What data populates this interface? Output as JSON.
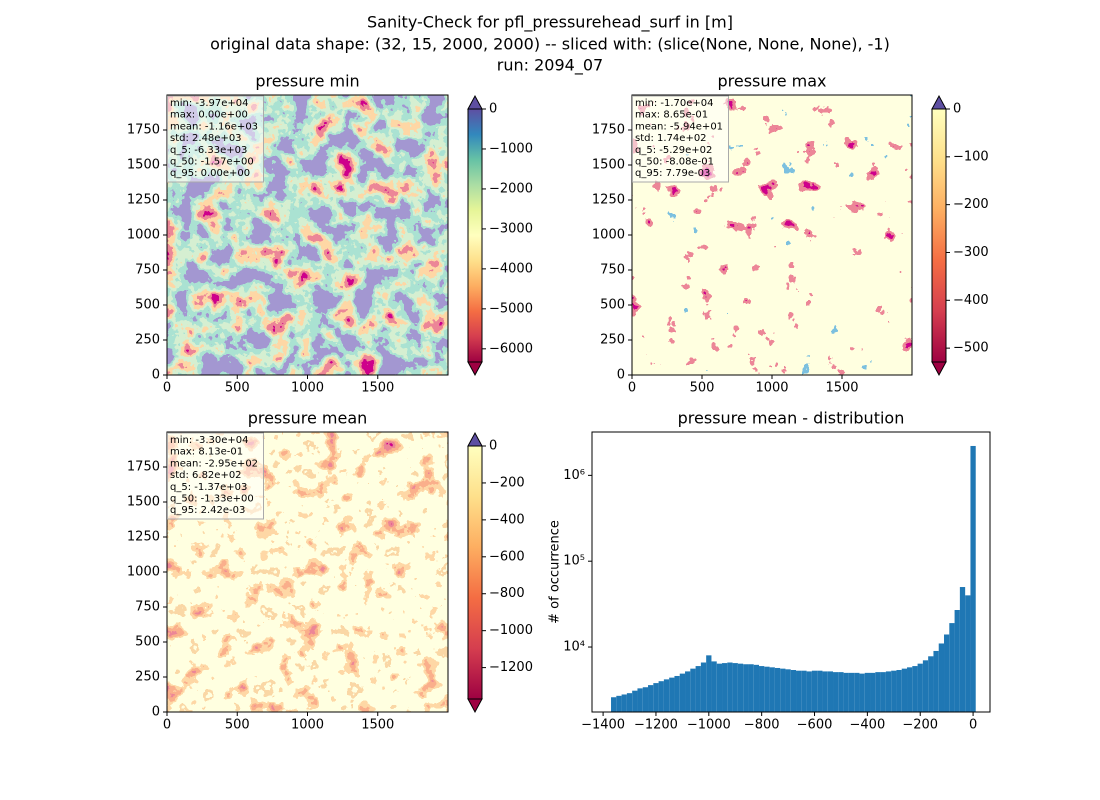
{
  "suptitle": [
    "Sanity-Check for pfl_pressurehead_surf in [m]",
    "original data shape: (32, 15, 2000, 2000) -- sliced with: (slice(None, None, None), -1)",
    "run: 2094_07"
  ],
  "chart_data": [
    {
      "type": "heatmap",
      "title": "pressure min",
      "xlim": [
        0,
        2000
      ],
      "ylim": [
        0,
        2000
      ],
      "xticks": [
        0,
        500,
        1000,
        1500
      ],
      "yticks": [
        0,
        250,
        500,
        750,
        1000,
        1250,
        1500,
        1750
      ],
      "stats": [
        "min: -3.97e+04",
        "max: 0.00e+00",
        "mean: -1.16e+03",
        "std: 2.48e+03",
        "q_5: -6.33e+03",
        "q_50: -1.57e+00",
        "q_95: 0.00e+00"
      ],
      "colormap": "Spectral",
      "clim": [
        -6330,
        0
      ],
      "cticks": [
        0,
        {
          "value": -1000,
          "label": "−1000"
        },
        {
          "value": -2000,
          "label": "−2000"
        },
        {
          "value": -3000,
          "label": "−3000"
        },
        {
          "value": -4000,
          "label": "−4000"
        },
        {
          "value": -5000,
          "label": "−5000"
        },
        {
          "value": -6000,
          "label": "−6000"
        }
      ]
    },
    {
      "type": "heatmap",
      "title": "pressure max",
      "xlim": [
        0,
        2000
      ],
      "ylim": [
        0,
        2000
      ],
      "xticks": [
        0,
        500,
        1000,
        1500
      ],
      "yticks": [
        0,
        250,
        500,
        750,
        1000,
        1250,
        1500,
        1750
      ],
      "stats": [
        "min: -1.70e+04",
        "max: 8.65e-01",
        "mean: -5.94e+01",
        "std: 1.74e+02",
        "q_5: -5.29e+02",
        "q_50: -8.08e-01",
        "q_95: 7.79e-03"
      ],
      "colormap": "Spectral",
      "clim": [
        -529,
        0
      ],
      "cticks": [
        0,
        {
          "value": -100,
          "label": "−100"
        },
        {
          "value": -200,
          "label": "−200"
        },
        {
          "value": -300,
          "label": "−300"
        },
        {
          "value": -400,
          "label": "−400"
        },
        {
          "value": -500,
          "label": "−500"
        }
      ]
    },
    {
      "type": "heatmap",
      "title": "pressure mean",
      "xlim": [
        0,
        2000
      ],
      "ylim": [
        0,
        2000
      ],
      "xticks": [
        0,
        500,
        1000,
        1500
      ],
      "yticks": [
        0,
        250,
        500,
        750,
        1000,
        1250,
        1500,
        1750
      ],
      "stats": [
        "min: -3.30e+04",
        "max: 8.13e-01",
        "mean: -2.95e+02",
        "std: 6.82e+02",
        "q_5: -1.37e+03",
        "q_50: -1.33e+00",
        "q_95: 2.42e-03"
      ],
      "colormap": "Spectral",
      "clim": [
        -1370,
        0
      ],
      "cticks": [
        0,
        {
          "value": -200,
          "label": "−200"
        },
        {
          "value": -400,
          "label": "−400"
        },
        {
          "value": -600,
          "label": "−600"
        },
        {
          "value": -800,
          "label": "−800"
        },
        {
          "value": -1000,
          "label": "−1000"
        },
        {
          "value": -1200,
          "label": "−1200"
        }
      ]
    },
    {
      "type": "histogram",
      "title": "pressure mean - distribution",
      "ylabel": "# of occurrence",
      "color": "#1f77b4",
      "log_y": true,
      "bins": [
        -1370,
        -1350,
        -1330,
        -1310,
        -1290,
        -1270,
        -1250,
        -1230,
        -1210,
        -1190,
        -1170,
        -1150,
        -1130,
        -1110,
        -1090,
        -1070,
        -1050,
        -1030,
        -1010,
        -990,
        -970,
        -950,
        -930,
        -910,
        -890,
        -870,
        -850,
        -830,
        -810,
        -790,
        -770,
        -750,
        -730,
        -710,
        -690,
        -670,
        -650,
        -630,
        -610,
        -590,
        -570,
        -550,
        -530,
        -510,
        -490,
        -470,
        -450,
        -430,
        -410,
        -390,
        -370,
        -350,
        -330,
        -310,
        -290,
        -270,
        -250,
        -230,
        -210,
        -190,
        -170,
        -150,
        -130,
        -110,
        -90,
        -70,
        -50,
        -30,
        -10,
        10
      ],
      "counts": [
        2600,
        2700,
        2800,
        2900,
        3100,
        3300,
        3400,
        3600,
        3800,
        4000,
        4200,
        4400,
        4600,
        4900,
        5200,
        5600,
        6000,
        6600,
        8000,
        6800,
        6400,
        6500,
        6600,
        6500,
        6400,
        6300,
        6300,
        6200,
        6000,
        5900,
        5800,
        5700,
        5600,
        5500,
        5400,
        5300,
        5300,
        5200,
        5300,
        5300,
        5200,
        5200,
        5100,
        5100,
        5000,
        5000,
        5000,
        4900,
        5000,
        5000,
        5100,
        5100,
        5200,
        5300,
        5400,
        5600,
        5800,
        6000,
        6400,
        7000,
        7800,
        9000,
        11000,
        14000,
        19000,
        27000,
        50000,
        40000,
        2200000
      ],
      "xlim": [
        -1442,
        64
      ],
      "ylim": [
        1750,
        3200000
      ],
      "xticks": [
        {
          "value": -1400,
          "label": "−1400"
        },
        {
          "value": -1200,
          "label": "−1200"
        },
        {
          "value": -1000,
          "label": "−1000"
        },
        {
          "value": -800,
          "label": "−800"
        },
        {
          "value": -600,
          "label": "−600"
        },
        {
          "value": -400,
          "label": "−400"
        },
        {
          "value": -200,
          "label": "−200"
        },
        0
      ],
      "yticks": [
        {
          "value": 10000,
          "label": "10⁴"
        },
        {
          "value": 100000,
          "label": "10⁵"
        },
        {
          "value": 1000000,
          "label": "10⁶"
        }
      ]
    }
  ]
}
